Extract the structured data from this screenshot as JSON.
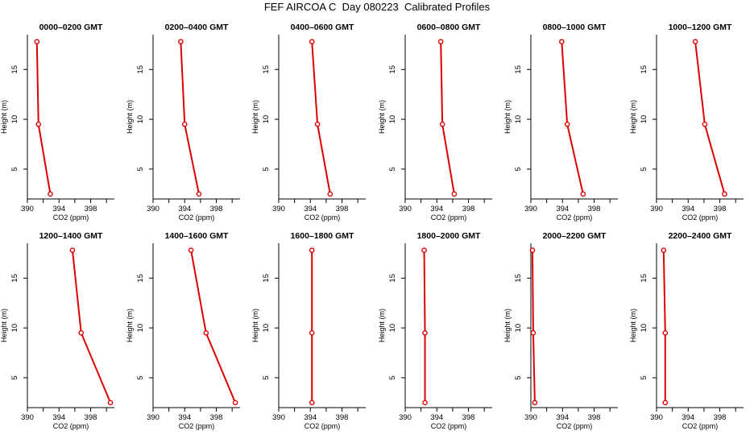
{
  "page": {
    "title": "FEF AIRCOA C  Day 080223  Calibrated Profiles"
  },
  "colors": {
    "profile_line": "#dd0000",
    "axis": "#000000",
    "background": "#ffffff"
  },
  "axes": {
    "xlabel": "CO2 (ppm)",
    "ylabel": "Height (m)",
    "xticks": [
      390,
      394,
      398
    ],
    "xlim": [
      390,
      401
    ],
    "yticks": [
      5,
      10,
      15
    ],
    "ylim": [
      2,
      18.5
    ]
  },
  "chart_data": [
    {
      "type": "line",
      "title": "0000–0200 GMT",
      "x": [
        391.2,
        391.4,
        392.9
      ],
      "y": [
        17.8,
        9.5,
        2.5
      ]
    },
    {
      "type": "line",
      "title": "0200–0400 GMT",
      "x": [
        393.5,
        394.0,
        395.8
      ],
      "y": [
        17.8,
        9.5,
        2.5
      ]
    },
    {
      "type": "line",
      "title": "0400–0600 GMT",
      "x": [
        394.2,
        394.9,
        396.5
      ],
      "y": [
        17.8,
        9.5,
        2.5
      ]
    },
    {
      "type": "line",
      "title": "0600–0800 GMT",
      "x": [
        394.5,
        394.7,
        396.2
      ],
      "y": [
        17.8,
        9.5,
        2.5
      ]
    },
    {
      "type": "line",
      "title": "0800–1000 GMT",
      "x": [
        393.9,
        394.6,
        396.6
      ],
      "y": [
        17.8,
        9.5,
        2.5
      ]
    },
    {
      "type": "line",
      "title": "1000–1200 GMT",
      "x": [
        394.9,
        396.1,
        398.6
      ],
      "y": [
        17.8,
        9.5,
        2.5
      ]
    },
    {
      "type": "line",
      "title": "1200–1400 GMT",
      "x": [
        395.7,
        396.8,
        400.5
      ],
      "y": [
        17.8,
        9.5,
        2.5
      ]
    },
    {
      "type": "line",
      "title": "1400–1600 GMT",
      "x": [
        394.8,
        396.7,
        400.4
      ],
      "y": [
        17.8,
        9.5,
        2.5
      ]
    },
    {
      "type": "line",
      "title": "1600–1800 GMT",
      "x": [
        394.2,
        394.2,
        394.2
      ],
      "y": [
        17.8,
        9.5,
        2.5
      ]
    },
    {
      "type": "line",
      "title": "1800–2000 GMT",
      "x": [
        392.4,
        392.5,
        392.5
      ],
      "y": [
        17.8,
        9.5,
        2.5
      ]
    },
    {
      "type": "line",
      "title": "2000–2200 GMT",
      "x": [
        390.2,
        390.3,
        390.5
      ],
      "y": [
        17.8,
        9.5,
        2.5
      ]
    },
    {
      "type": "line",
      "title": "2200–2400 GMT",
      "x": [
        390.9,
        391.1,
        391.1
      ],
      "y": [
        17.8,
        9.5,
        2.5
      ]
    }
  ]
}
